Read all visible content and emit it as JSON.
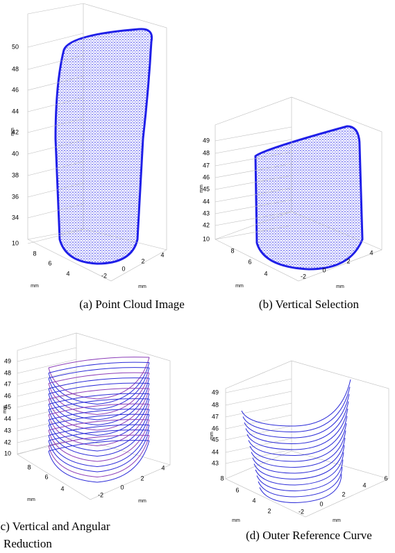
{
  "panels": [
    {
      "caption": "(a) Point Cloud Image",
      "axis_label": "mm",
      "z_ticks": [
        50,
        48,
        46,
        44,
        42,
        40,
        38,
        36,
        34,
        10
      ],
      "depth_ticks": [
        8,
        6,
        4
      ],
      "x_ticks": [
        -2,
        0,
        2,
        4
      ]
    },
    {
      "caption": "(b) Vertical Selection",
      "axis_label": "mm",
      "z_ticks": [
        49,
        48,
        47,
        46,
        45,
        44,
        43,
        42,
        10
      ],
      "depth_ticks": [
        8,
        6,
        4
      ],
      "x_ticks": [
        -2,
        0,
        2,
        4
      ]
    },
    {
      "caption": [
        "(c) Vertical and Angular",
        "Reduction"
      ],
      "axis_label": "mm",
      "z_ticks": [
        49,
        48,
        47,
        46,
        45,
        44,
        43,
        42,
        10
      ],
      "depth_ticks": [
        8,
        6,
        4
      ],
      "x_ticks": [
        -2,
        0,
        2,
        4
      ]
    },
    {
      "caption": "(d) Outer Reference Curve",
      "axis_label": "mm",
      "z_ticks": [
        49,
        48,
        47,
        46,
        45,
        44,
        43
      ],
      "depth_ticks": [
        8,
        6,
        4,
        2
      ],
      "x_ticks": [
        -2,
        0,
        2,
        4,
        6
      ]
    }
  ]
}
